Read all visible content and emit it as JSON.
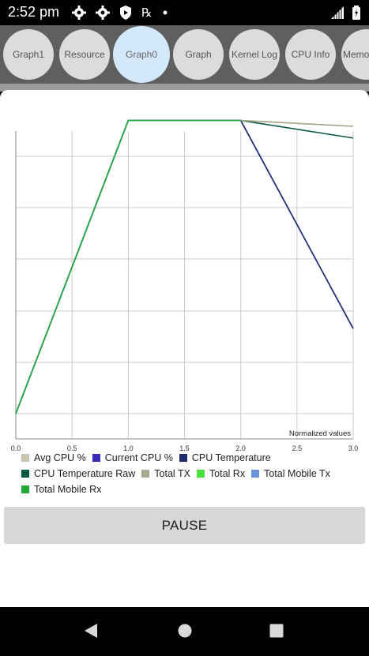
{
  "status_bar": {
    "time": "2:52 pm",
    "icons": [
      "gear-icon",
      "gear-icon",
      "shield-icon",
      "prescription-icon",
      "dot-icon"
    ],
    "right_icons": [
      "signal-icon",
      "battery-icon"
    ]
  },
  "tabs": [
    {
      "label": "Graph1",
      "active": false
    },
    {
      "label": "Resource",
      "active": false
    },
    {
      "label": "Graph0",
      "active": true
    },
    {
      "label": "Graph",
      "active": false
    },
    {
      "label": "Kernel Log",
      "active": false
    },
    {
      "label": "CPU Info",
      "active": false
    },
    {
      "label": "Memor",
      "active": false
    }
  ],
  "chart_data": {
    "type": "line",
    "annotation": "Normalized values",
    "xlim": [
      0,
      3
    ],
    "ylim": [
      0,
      1.05
    ],
    "x_ticks": [
      "0.0",
      "0.5",
      "1.0",
      "1.5",
      "2.0",
      "2.5",
      "3.0"
    ],
    "grid": true,
    "legend_position": "bottom",
    "series": [
      {
        "name": "Avg CPU %",
        "color": "#c8c4b0",
        "x": [
          0,
          1,
          2,
          3
        ],
        "y": [
          0,
          1,
          1,
          0.98
        ]
      },
      {
        "name": "Current CPU %",
        "color": "#3a2bbd",
        "x": [
          0,
          1,
          2,
          3
        ],
        "y": [
          0,
          1,
          1,
          0.29
        ]
      },
      {
        "name": "CPU Temperature",
        "color": "#1f2d70",
        "x": [
          0,
          1,
          2,
          3
        ],
        "y": [
          0,
          1,
          1,
          0.29
        ]
      },
      {
        "name": "CPU Temperature Raw",
        "color": "#0d5a45",
        "x": [
          0,
          1,
          2,
          3
        ],
        "y": [
          0,
          1,
          1,
          0.94
        ]
      },
      {
        "name": "Total TX",
        "color": "#a8a88a",
        "x": [
          0,
          1,
          2,
          3
        ],
        "y": [
          0,
          1,
          1,
          0.98
        ]
      },
      {
        "name": "Total Rx",
        "color": "#4ce03a",
        "x": [
          0,
          1,
          2
        ],
        "y": [
          0,
          1,
          1
        ]
      },
      {
        "name": "Total Mobile Tx",
        "color": "#6a95dd",
        "x": [
          0,
          1,
          2
        ],
        "y": [
          0,
          1,
          1
        ]
      },
      {
        "name": "Total Mobile Rx",
        "color": "#22a83a",
        "x": [
          0,
          1,
          2
        ],
        "y": [
          0,
          1,
          1
        ]
      }
    ]
  },
  "legend": {
    "rows": [
      [
        {
          "label": "Avg CPU %",
          "color": "#c8c4b0"
        },
        {
          "label": "Current CPU %",
          "color": "#3a2bbd"
        },
        {
          "label": "CPU Temperature",
          "color": "#1f2d70"
        }
      ],
      [
        {
          "label": "CPU Temperature Raw",
          "color": "#0d5a45"
        },
        {
          "label": "Total TX",
          "color": "#a8a88a"
        },
        {
          "label": "Total Rx",
          "color": "#4ce03a"
        },
        {
          "label": "Total Mobile Tx",
          "color": "#6a95dd"
        }
      ],
      [
        {
          "label": "Total Mobile Rx",
          "color": "#22a83a"
        }
      ]
    ]
  },
  "pause_label": "PAUSE",
  "nav": {
    "back": "back-icon",
    "home": "home-icon",
    "recents": "recents-icon"
  }
}
